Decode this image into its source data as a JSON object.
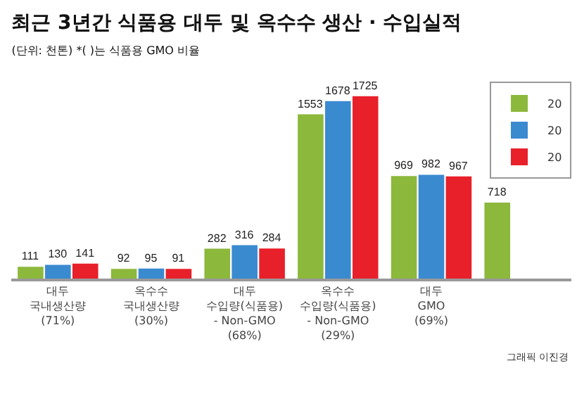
{
  "chart_data": {
    "type": "bar",
    "title": "최근 3년간 식품용 대두 및 옥수수 생산 · 수입실적",
    "subtitle": "(단위: 천톤) *( )는 식품용 GMO 비율",
    "categories": [
      "대두\n국내생산량\n(71%)",
      "옥수수\n국내생산량\n(30%)",
      "대두\n수입량(식품용)\n- Non-GMO\n(68%)",
      "옥수수\n수입량(식품용)\n- Non-GMO\n(29%)",
      "대두\nGMO\n(69%)",
      null
    ],
    "series": [
      {
        "name": "20",
        "color": "#8cb83c",
        "values": [
          111,
          92,
          282,
          1553,
          969,
          718
        ]
      },
      {
        "name": "20",
        "color": "#3a8ad0",
        "values": [
          130,
          95,
          316,
          1678,
          982,
          null
        ]
      },
      {
        "name": "20",
        "color": "#e8202a",
        "values": [
          141,
          91,
          284,
          1725,
          967,
          null
        ]
      }
    ],
    "data_labels": true,
    "legend": "top right",
    "annotations": [
      "그래픽 이진경"
    ]
  }
}
